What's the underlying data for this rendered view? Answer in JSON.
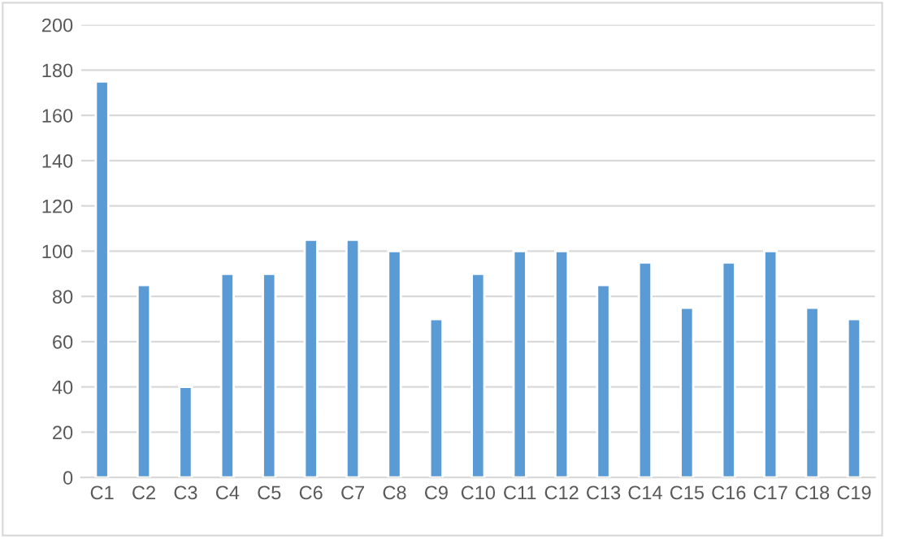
{
  "chart_data": {
    "type": "bar",
    "categories": [
      "C1",
      "C2",
      "C3",
      "C4",
      "C5",
      "C6",
      "C7",
      "C8",
      "C9",
      "C10",
      "C11",
      "C12",
      "C13",
      "C14",
      "C15",
      "C16",
      "C17",
      "C18",
      "C19"
    ],
    "values": [
      175,
      85,
      40,
      90,
      90,
      105,
      105,
      100,
      70,
      90,
      100,
      100,
      85,
      95,
      75,
      95,
      100,
      75,
      70
    ],
    "color": "#5b9bd5",
    "ylim": [
      0,
      200
    ],
    "yticks": [
      0,
      20,
      40,
      60,
      80,
      100,
      120,
      140,
      160,
      180,
      200
    ],
    "grid": "y"
  }
}
